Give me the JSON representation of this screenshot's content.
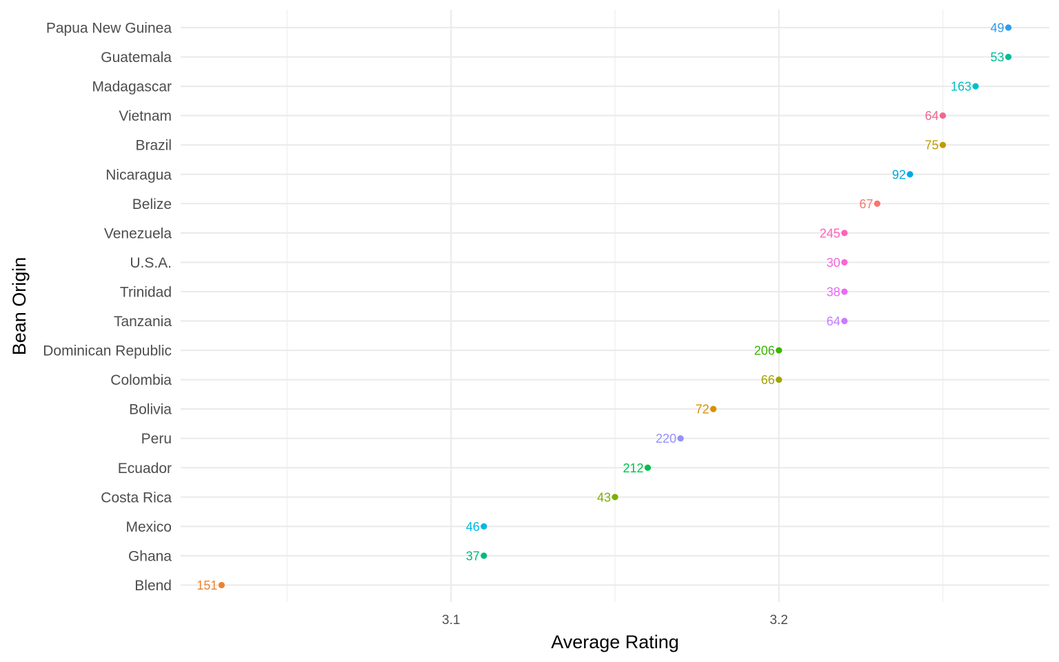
{
  "chart_data": {
    "type": "scatter",
    "title": "",
    "xlabel": "Average Rating",
    "ylabel": "Bean Origin",
    "xlim": [
      3.0175,
      3.2825
    ],
    "x_ticks": [
      "3.1",
      "3.2"
    ],
    "x_tick_values": [
      3.1,
      3.2
    ],
    "grid": true,
    "legend": "none",
    "points": [
      {
        "category": "Papua New Guinea",
        "x": 3.27,
        "label": "49",
        "color": "#2F9CF0"
      },
      {
        "category": "Guatemala",
        "x": 3.27,
        "label": "53",
        "color": "#00BC9A"
      },
      {
        "category": "Madagascar",
        "x": 3.26,
        "label": "163",
        "color": "#00BFC4"
      },
      {
        "category": "Vietnam",
        "x": 3.25,
        "label": "64",
        "color": "#F2668B"
      },
      {
        "category": "Brazil",
        "x": 3.25,
        "label": "75",
        "color": "#BE9C00"
      },
      {
        "category": "Nicaragua",
        "x": 3.24,
        "label": "92",
        "color": "#00A9E6"
      },
      {
        "category": "Belize",
        "x": 3.23,
        "label": "67",
        "color": "#F8766D"
      },
      {
        "category": "Venezuela",
        "x": 3.22,
        "label": "245",
        "color": "#FF62BC"
      },
      {
        "category": "U.S.A.",
        "x": 3.22,
        "label": "30",
        "color": "#F766D8"
      },
      {
        "category": "Trinidad",
        "x": 3.22,
        "label": "38",
        "color": "#E76BF3"
      },
      {
        "category": "Tanzania",
        "x": 3.22,
        "label": "64",
        "color": "#C77CFF"
      },
      {
        "category": "Dominican Republic",
        "x": 3.2,
        "label": "206",
        "color": "#39B600"
      },
      {
        "category": "Colombia",
        "x": 3.2,
        "label": "66",
        "color": "#A3A500"
      },
      {
        "category": "Bolivia",
        "x": 3.18,
        "label": "72",
        "color": "#D89000"
      },
      {
        "category": "Peru",
        "x": 3.17,
        "label": "220",
        "color": "#9590FF"
      },
      {
        "category": "Ecuador",
        "x": 3.16,
        "label": "212",
        "color": "#00BF4C"
      },
      {
        "category": "Costa Rica",
        "x": 3.15,
        "label": "43",
        "color": "#7CAE00"
      },
      {
        "category": "Mexico",
        "x": 3.11,
        "label": "46",
        "color": "#00B8E7"
      },
      {
        "category": "Ghana",
        "x": 3.11,
        "label": "37",
        "color": "#00BA7C"
      },
      {
        "category": "Blend",
        "x": 3.03,
        "label": "151",
        "color": "#EA8331"
      }
    ]
  }
}
